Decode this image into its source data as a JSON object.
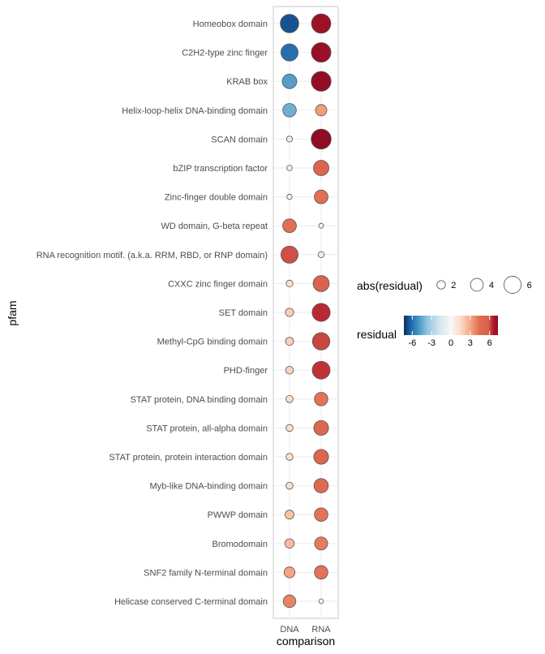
{
  "chart_data": {
    "type": "scatter",
    "subtype": "bubble",
    "xlabel": "comparison",
    "ylabel": "pfam",
    "x_categories": [
      "DNA",
      "RNA"
    ],
    "y_categories": [
      "Homeobox domain",
      "C2H2-type zinc finger",
      "KRAB box",
      "Helix-loop-helix DNA-binding domain",
      "SCAN domain",
      "bZIP transcription factor",
      "Zinc-finger double domain",
      "WD domain, G-beta repeat",
      "RNA recognition motif. (a.k.a. RRM, RBD, or RNP domain)",
      "CXXC zinc finger domain",
      "SET domain",
      "Methyl-CpG binding domain",
      "PHD-finger",
      "STAT protein, DNA binding domain",
      "STAT protein, all-alpha domain",
      "STAT protein, protein interaction domain",
      "Myb-like DNA-binding domain",
      "PWWP domain",
      "Bromodomain",
      "SNF2 family N-terminal domain",
      "Helicase conserved C-terminal domain"
    ],
    "series": [
      {
        "comparison": "DNA",
        "values": [
          -6.6,
          -6.0,
          -4.8,
          -4.3,
          -0.8,
          -0.6,
          -0.5,
          4.4,
          6.0,
          1.2,
          1.9,
          1.8,
          1.7,
          1.4,
          1.3,
          1.3,
          1.3,
          2.2,
          2.4,
          3.1,
          3.9
        ]
      },
      {
        "comparison": "RNA",
        "values": [
          7.0,
          7.1,
          7.2,
          3.3,
          7.3,
          5.2,
          4.4,
          -0.3,
          -0.9,
          5.5,
          6.4,
          6.1,
          6.3,
          4.3,
          4.9,
          4.9,
          4.7,
          4.3,
          4.1,
          4.3,
          -0.2
        ]
      }
    ],
    "size_legend": {
      "title": "abs(residual)",
      "breaks": [
        2,
        4,
        6
      ],
      "labels": [
        "2",
        "4",
        "6"
      ]
    },
    "color_legend": {
      "title": "residual",
      "limits": [
        -7.3,
        7.3
      ],
      "breaks": [
        -6,
        -3,
        0,
        3,
        6
      ],
      "labels": [
        "-6",
        "-3",
        "0",
        "3",
        "6"
      ]
    },
    "color_scale": {
      "low": "#053061",
      "mid": "#f7f7f7",
      "high": "#67001f"
    },
    "grid": true,
    "legend_position": "right"
  }
}
